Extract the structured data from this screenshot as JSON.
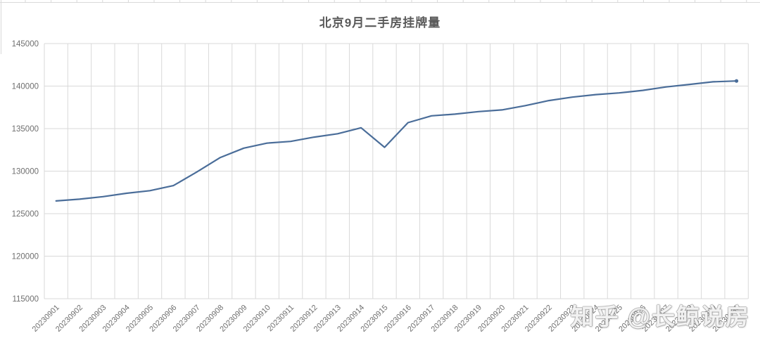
{
  "page": {
    "title": "北京9月二手房挂牌量",
    "watermark": "知乎 @长鲸说房"
  },
  "chart_data": {
    "type": "line",
    "title": "北京9月二手房挂牌量",
    "x": [
      "20230901",
      "20230902",
      "20230903",
      "20230904",
      "20230905",
      "20230906",
      "20230907",
      "20230908",
      "20230909",
      "20230910",
      "20230911",
      "20230912",
      "20230913",
      "20230914",
      "20230915",
      "20230916",
      "20230917",
      "20230918",
      "20230919",
      "20230920",
      "20230921",
      "20230922",
      "20230923",
      "20230924",
      "20230925",
      "20230926",
      "20230927",
      "20230928",
      "20230929",
      "20230930"
    ],
    "values": [
      126500,
      126700,
      127000,
      127400,
      127700,
      128300,
      129900,
      131600,
      132700,
      133300,
      133500,
      134000,
      134400,
      135100,
      132800,
      135700,
      136500,
      136700,
      137000,
      137200,
      137700,
      138300,
      138700,
      139000,
      139200,
      139500,
      139900,
      140200,
      140500,
      140600
    ],
    "xlabel": "",
    "ylabel": "",
    "ylim": [
      115000,
      145000
    ],
    "yticks": [
      115000,
      120000,
      125000,
      130000,
      135000,
      140000,
      145000
    ],
    "grid": true,
    "legend": false,
    "line_color": "#4a6d99",
    "grid_color": "#d9d9d9",
    "tick_text_color": "#6f6f6f",
    "title_color": "#595959"
  }
}
